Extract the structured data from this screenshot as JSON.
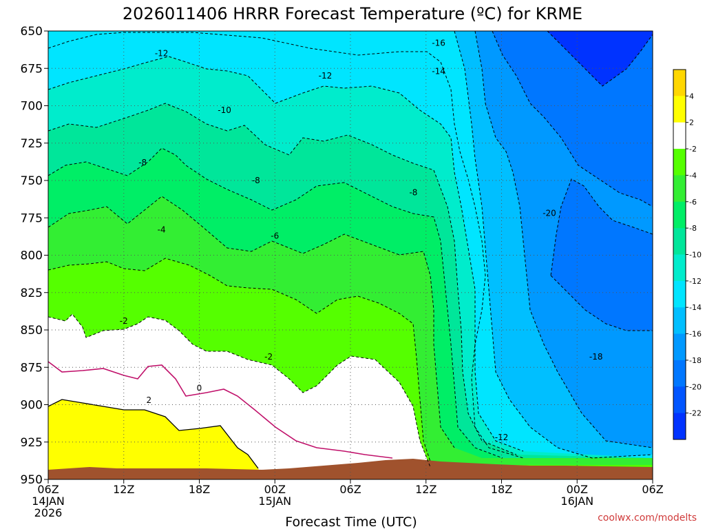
{
  "chart_data": {
    "type": "contour",
    "title": "2026011406 HRRR Forecast Temperature (ºC) for KRME",
    "xlabel": "Forecast Time (UTC)",
    "ylabel": "",
    "credit": "coolwx.com/modelts",
    "y_axis": {
      "ticks": [
        650,
        675,
        700,
        725,
        750,
        775,
        800,
        825,
        850,
        875,
        900,
        925,
        950
      ],
      "range": [
        950,
        650
      ],
      "inverted": true
    },
    "x_axis": {
      "ticks": [
        {
          "hour": 0,
          "line1": "06Z",
          "line2": "14JAN",
          "line3": "2026"
        },
        {
          "hour": 6,
          "line1": "12Z",
          "line2": "",
          "line3": ""
        },
        {
          "hour": 12,
          "line1": "18Z",
          "line2": "",
          "line3": ""
        },
        {
          "hour": 18,
          "line1": "00Z",
          "line2": "15JAN",
          "line3": ""
        },
        {
          "hour": 24,
          "line1": "06Z",
          "line2": "",
          "line3": ""
        },
        {
          "hour": 30,
          "line1": "12Z",
          "line2": "",
          "line3": ""
        },
        {
          "hour": 36,
          "line1": "18Z",
          "line2": "",
          "line3": ""
        },
        {
          "hour": 42,
          "line1": "00Z",
          "line2": "16JAN",
          "line3": ""
        },
        {
          "hour": 48,
          "line1": "06Z",
          "line2": "",
          "line3": ""
        }
      ],
      "range": [
        0,
        48
      ]
    },
    "grid": true,
    "colorbar": {
      "labels": [
        "4",
        "2",
        "-2",
        "-4",
        "-6",
        "-8",
        "-10",
        "-12",
        "-14",
        "-16",
        "-18",
        "-20",
        "-22"
      ],
      "colors": [
        "#ffd700",
        "#ffff00",
        "#ffffff",
        "#55ff00",
        "#33ee33",
        "#00ee66",
        "#00e69a",
        "#00eccc",
        "#00e5ff",
        "#00bfff",
        "#0099ff",
        "#0077ff",
        "#0055ff",
        "#0033ff"
      ]
    },
    "contour_labels": [
      {
        "text": "-16",
        "hour": 31.0,
        "p": 658
      },
      {
        "text": "-12",
        "hour": 9.0,
        "p": 665
      },
      {
        "text": "-14",
        "hour": 31.0,
        "p": 677
      },
      {
        "text": "-12",
        "hour": 22.0,
        "p": 680
      },
      {
        "text": "-10",
        "hour": 14.0,
        "p": 703
      },
      {
        "text": "-8",
        "hour": 7.5,
        "p": 738
      },
      {
        "text": "-8",
        "hour": 16.5,
        "p": 750
      },
      {
        "text": "-8",
        "hour": 29.0,
        "p": 758
      },
      {
        "text": "-20",
        "hour": 39.8,
        "p": 772
      },
      {
        "text": "-4",
        "hour": 9.0,
        "p": 783
      },
      {
        "text": "-6",
        "hour": 18.0,
        "p": 787
      },
      {
        "text": "-2",
        "hour": 6.0,
        "p": 844
      },
      {
        "text": "-2",
        "hour": 17.5,
        "p": 868
      },
      {
        "text": "-18",
        "hour": 43.5,
        "p": 868
      },
      {
        "text": "0",
        "hour": 12.0,
        "p": 889
      },
      {
        "text": "2",
        "hour": 8.0,
        "p": 897
      },
      {
        "text": "-12",
        "hour": 36.0,
        "p": 922
      }
    ]
  }
}
